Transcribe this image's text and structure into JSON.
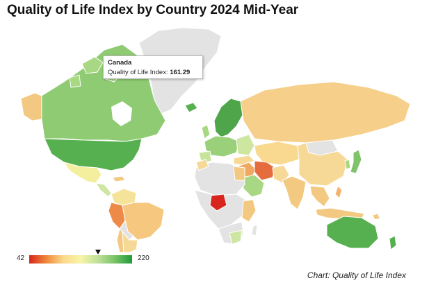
{
  "title": "Quality of Life Index by Country 2024 Mid-Year",
  "tooltip": {
    "country": "Canada",
    "label": "Quality of Life Index:",
    "value": "161.29"
  },
  "legend": {
    "min": "42",
    "max": "220",
    "marker_value": 161.29,
    "colors": [
      "#d7261e",
      "#f08a3b",
      "#fbd88b",
      "#f7f5a8",
      "#bfe09a",
      "#79c466",
      "#1f9a3a"
    ]
  },
  "source": {
    "prefix": "Chart: ",
    "name": "Quality of Life Index"
  },
  "colors": {
    "no_data": "#e3e3e3",
    "high": "#3a9b3f",
    "high_mid": "#7fc36a",
    "mid": "#bfe09a",
    "pale": "#f6f3b0",
    "low_mid": "#fbd88b",
    "low": "#f3b470",
    "lowest": "#d7261e"
  }
}
